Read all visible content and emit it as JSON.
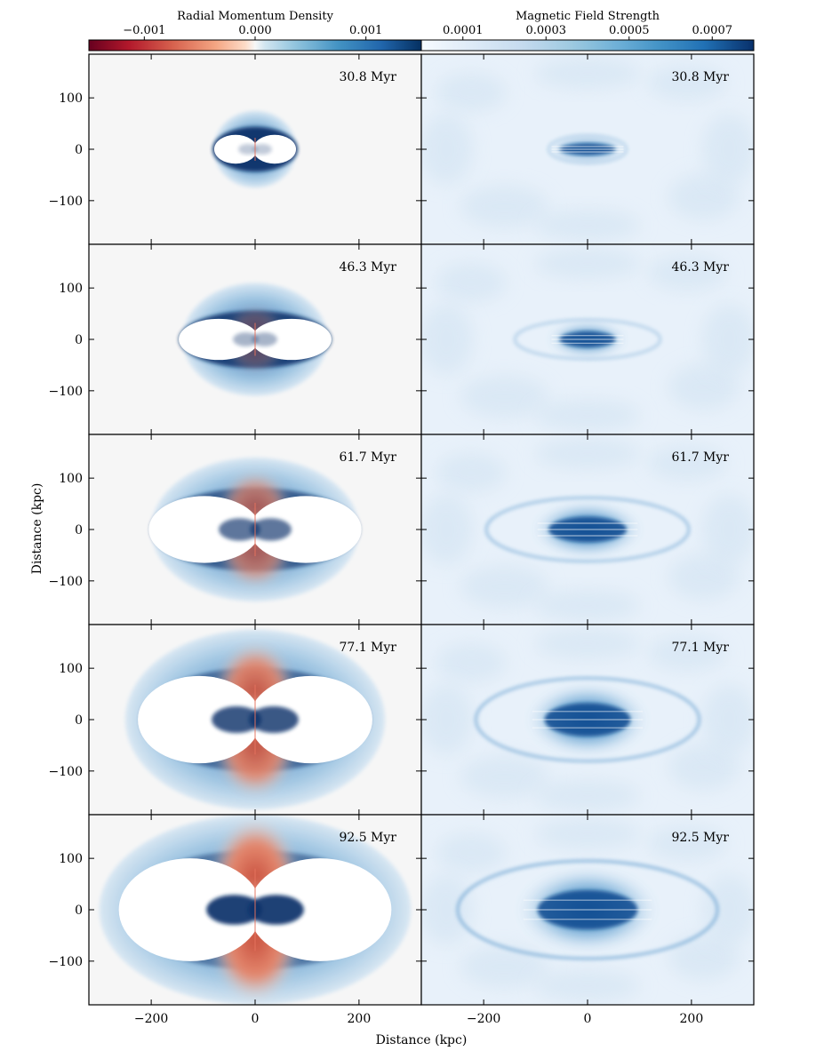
{
  "chart_data": {
    "type": "heatmap",
    "xlabel": "Distance (kpc)",
    "ylabel": "Distance (kpc)",
    "xlim": [
      -320,
      320
    ],
    "ylim": [
      -185,
      185
    ],
    "xticks": [
      -200,
      0,
      200
    ],
    "xtick_labels": [
      "−200",
      "0",
      "200"
    ],
    "yticks": [
      100,
      0,
      -100
    ],
    "ytick_labels": [
      "100",
      "0",
      "−100"
    ],
    "snapshots": [
      "30.8 Myr",
      "46.3 Myr",
      "61.7 Myr",
      "77.1 Myr",
      "92.5 Myr"
    ],
    "columns": [
      {
        "title": "Radial Momentum Density",
        "colormap": "RdBu",
        "range": [
          -0.0015,
          0.0015
        ],
        "tick_values": [
          -0.001,
          0.0,
          0.001
        ],
        "tick_labels": [
          "−0.001",
          "0.000",
          "0.001"
        ]
      },
      {
        "title": "Magnetic Field Strength",
        "colormap": "Blues",
        "range": [
          0.0,
          0.0008
        ],
        "tick_values": [
          0.0001,
          0.0003,
          0.0005,
          0.0007
        ],
        "tick_labels": [
          "0.0001",
          "0.0003",
          "0.0005",
          "0.0007"
        ]
      }
    ],
    "lobe_extent_kpc": [
      {
        "time": "30.8 Myr",
        "cocoon_half_width": 80,
        "cocoon_half_height": 75,
        "inner_lobe_half_width": 75,
        "inner_lobe_half_height": 28,
        "backflow_strength": 0.0
      },
      {
        "time": "46.3 Myr",
        "cocoon_half_width": 140,
        "cocoon_half_height": 110,
        "inner_lobe_half_width": 140,
        "inner_lobe_half_height": 40,
        "backflow_strength": 0.15
      },
      {
        "time": "61.7 Myr",
        "cocoon_half_width": 200,
        "cocoon_half_height": 140,
        "inner_lobe_half_width": 195,
        "inner_lobe_half_height": 65,
        "backflow_strength": 0.55
      },
      {
        "time": "77.1 Myr",
        "cocoon_half_width": 250,
        "cocoon_half_height": 175,
        "inner_lobe_half_width": 215,
        "inner_lobe_half_height": 85,
        "backflow_strength": 0.75
      },
      {
        "time": "92.5 Myr",
        "cocoon_half_width": 300,
        "cocoon_half_height": 185,
        "inner_lobe_half_width": 250,
        "inner_lobe_half_height": 100,
        "backflow_strength": 0.9
      }
    ]
  },
  "colors": {
    "background_map": "#f6f6f6",
    "cocoon_blue": "#2a6fb0",
    "shell_dark_blue": "#08306b",
    "backflow_red": "#d6604d",
    "lobe_white": "#ffffff",
    "magnetic_bg": "#e8f1fa",
    "magnetic_core": "#0b4a8f"
  }
}
